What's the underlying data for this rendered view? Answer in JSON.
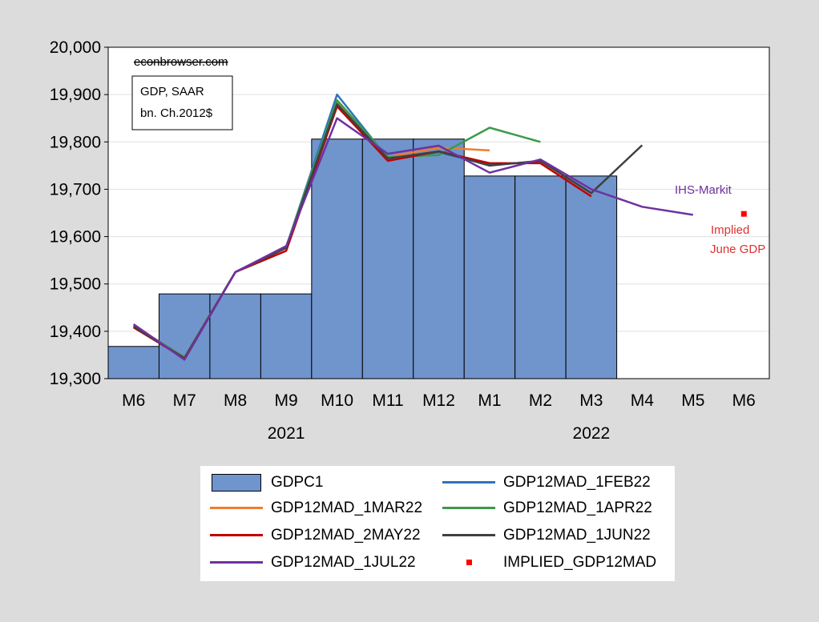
{
  "chart_data": {
    "type": "bar",
    "title": "",
    "xlabel": "",
    "ylabel": "",
    "ylim": [
      19300,
      20000
    ],
    "yticks": [
      19300,
      19400,
      19500,
      19600,
      19700,
      19800,
      19900,
      20000
    ],
    "ytick_labels": [
      "19,300",
      "19,400",
      "19,500",
      "19,600",
      "19,700",
      "19,800",
      "19,900",
      "20,000"
    ],
    "categories": [
      "M6",
      "M7",
      "M8",
      "M9",
      "M10",
      "M11",
      "M12",
      "M1",
      "M2",
      "M3",
      "M4",
      "M5",
      "M6"
    ],
    "year_labels": [
      {
        "label": "2021",
        "under": "M9"
      },
      {
        "label": "2022",
        "under": "M3"
      }
    ],
    "grid": true,
    "bars": {
      "name": "GDPC1",
      "color": "#7094cc",
      "values": [
        19368,
        19479,
        19479,
        19479,
        19806,
        19806,
        19806,
        19728,
        19728,
        19728,
        null,
        null,
        null
      ]
    },
    "series": [
      {
        "name": "GDP12MAD_1FEB22",
        "color": "#2e75b6",
        "values": [
          19412,
          19345,
          19525,
          19578,
          19900,
          19765,
          19778,
          19752,
          19758,
          null,
          null,
          null,
          null
        ]
      },
      {
        "name": "GDP12MAD_1MAR22",
        "color": "#ed7d31",
        "values": [
          19412,
          19345,
          19525,
          19578,
          19885,
          19768,
          19788,
          19782,
          null,
          null,
          null,
          null,
          null
        ]
      },
      {
        "name": "GDP12MAD_1APR22",
        "color": "#3a9a4a",
        "values": [
          19412,
          19345,
          19525,
          19578,
          19888,
          19768,
          19772,
          19830,
          19800,
          null,
          null,
          null,
          null
        ]
      },
      {
        "name": "GDP12MAD_2MAY22",
        "color": "#c00000",
        "values": [
          19408,
          19343,
          19525,
          19570,
          19875,
          19760,
          19780,
          19755,
          19755,
          19685,
          null,
          null,
          null
        ]
      },
      {
        "name": "GDP12MAD_1JUN22",
        "color": "#404040",
        "values": [
          19410,
          19343,
          19525,
          19576,
          19880,
          19765,
          19780,
          19750,
          19760,
          19692,
          19793,
          null,
          null
        ]
      },
      {
        "name": "GDP12MAD_1JUL22",
        "color": "#7030a0",
        "values": [
          19415,
          19340,
          19525,
          19580,
          19850,
          19775,
          19792,
          19735,
          19763,
          19700,
          19663,
          19646,
          null
        ]
      },
      {
        "name": "IMPLIED_GDP12MAD",
        "color": "#ff0000",
        "type": "scatter",
        "values": [
          null,
          null,
          null,
          null,
          null,
          null,
          null,
          null,
          null,
          null,
          null,
          null,
          19648
        ]
      }
    ],
    "annotations": {
      "source": "econbrowser.com",
      "box_line1": "GDP, SAAR",
      "box_line2": "bn. Ch.2012$",
      "ihs": "IHS-Markit",
      "implied_line1": "Implied",
      "implied_line2": "June GDP"
    },
    "legend": {
      "placement": "bottom",
      "items": [
        {
          "label": "GDPC1",
          "kind": "box",
          "color": "#7094cc"
        },
        {
          "label": "GDP12MAD_1FEB22",
          "kind": "line",
          "color": "#2e75b6"
        },
        {
          "label": "GDP12MAD_1MAR22",
          "kind": "line",
          "color": "#ed7d31"
        },
        {
          "label": "GDP12MAD_1APR22",
          "kind": "line",
          "color": "#3a9a4a"
        },
        {
          "label": "GDP12MAD_2MAY22",
          "kind": "line",
          "color": "#c00000"
        },
        {
          "label": "GDP12MAD_1JUN22",
          "kind": "line",
          "color": "#404040"
        },
        {
          "label": "GDP12MAD_1JUL22",
          "kind": "line",
          "color": "#7030a0"
        },
        {
          "label": "IMPLIED_GDP12MAD",
          "kind": "dot",
          "color": "#ff0000"
        }
      ]
    }
  }
}
